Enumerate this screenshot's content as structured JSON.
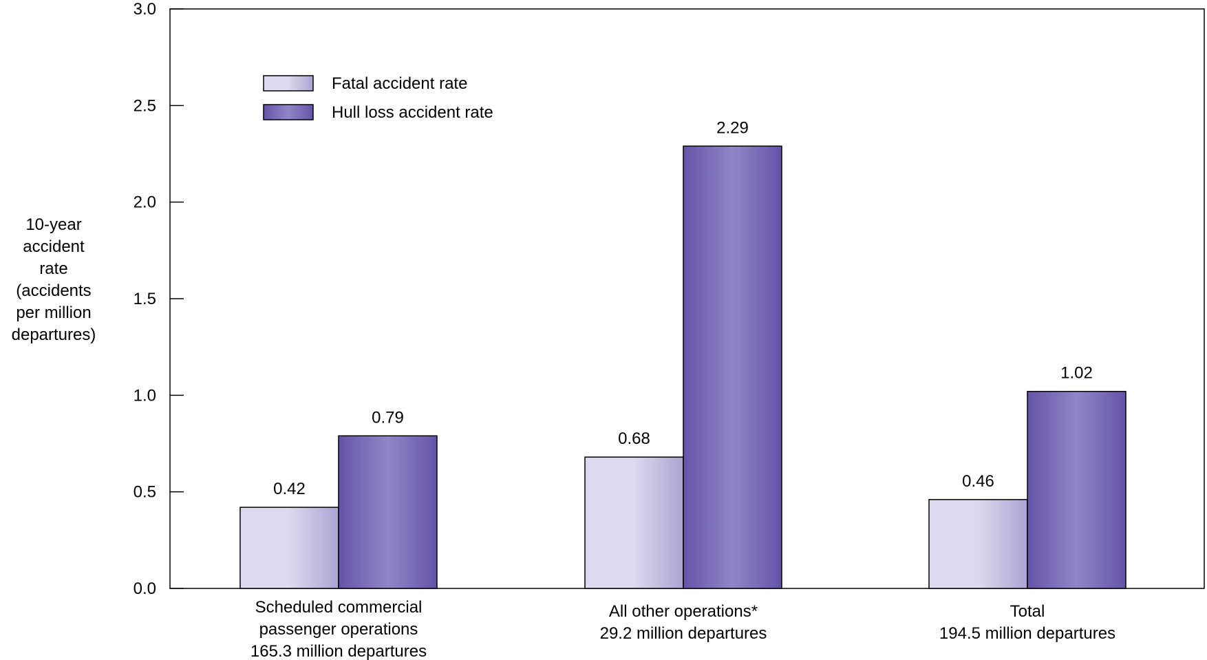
{
  "chart_data": {
    "type": "bar",
    "title": "",
    "ylabel_lines": [
      "10-year",
      "accident",
      "rate",
      "(accidents",
      "per million",
      "departures)"
    ],
    "ylim": [
      0,
      3.0
    ],
    "yticks": [
      "0.0",
      "0.5",
      "1.0",
      "1.5",
      "2.0",
      "2.5",
      "3.0"
    ],
    "ytick_values": [
      0,
      0.5,
      1.0,
      1.5,
      2.0,
      2.5,
      3.0
    ],
    "grid": false,
    "legend_position": "top-left",
    "categories": [
      [
        "Scheduled commercial",
        "passenger operations",
        "165.3 million departures"
      ],
      [
        "All other operations*",
        "29.2 million departures"
      ],
      [
        "Total",
        "194.5 million departures"
      ]
    ],
    "series": [
      {
        "name": "Fatal accident rate",
        "values": [
          0.42,
          0.68,
          0.46
        ],
        "labels": [
          "0.42",
          "0.68",
          "0.46"
        ],
        "color_dark": "#aca4d2",
        "color_light": "#ddd9ee"
      },
      {
        "name": "Hull loss accident rate",
        "values": [
          0.79,
          2.29,
          1.02
        ],
        "labels": [
          "0.79",
          "2.29",
          "1.02"
        ],
        "color_dark": "#6454a8",
        "color_light": "#9186c6"
      }
    ]
  }
}
